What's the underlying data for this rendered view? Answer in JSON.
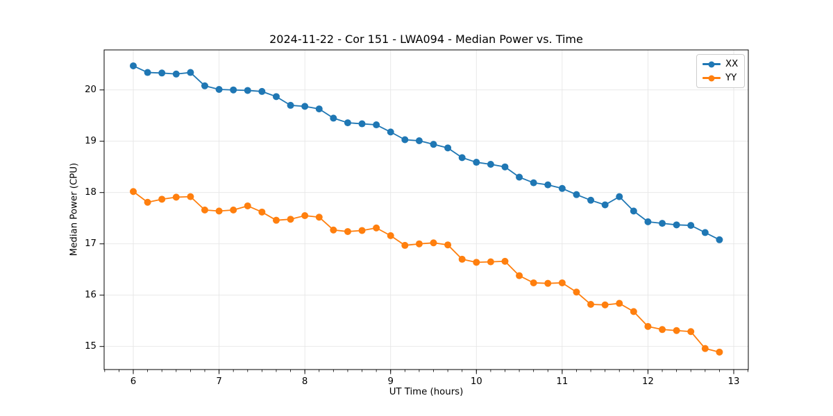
{
  "chart_data": {
    "type": "line",
    "title": "2024-11-22 - Cor 151 - LWA094 - Median Power vs. Time",
    "xlabel": "UT Time (hours)",
    "ylabel": "Median Power (CPU)",
    "xlim": [
      5.66,
      13.17
    ],
    "ylim": [
      14.55,
      20.78
    ],
    "x_ticks": [
      6,
      7,
      8,
      9,
      10,
      11,
      12,
      13
    ],
    "x_tick_labels": [
      "6",
      "7",
      "8",
      "9",
      "10",
      "11",
      "12",
      "13"
    ],
    "x_minor_step": 0.166667,
    "y_ticks": [
      15,
      16,
      17,
      18,
      19,
      20
    ],
    "y_tick_labels": [
      "15",
      "16",
      "17",
      "18",
      "19",
      "20"
    ],
    "grid": true,
    "grid_color": "#e6e6e6",
    "spine_color": "#000000",
    "legend_position": "upper right",
    "x": [
      6.0,
      6.1667,
      6.3333,
      6.5,
      6.6667,
      6.8333,
      7.0,
      7.1667,
      7.3333,
      7.5,
      7.6667,
      7.8333,
      8.0,
      8.1667,
      8.3333,
      8.5,
      8.6667,
      8.8333,
      9.0,
      9.1667,
      9.3333,
      9.5,
      9.6667,
      9.8333,
      10.0,
      10.1667,
      10.3333,
      10.5,
      10.6667,
      10.8333,
      11.0,
      11.1667,
      11.3333,
      11.5,
      11.6667,
      11.8333,
      12.0,
      12.1667,
      12.3333,
      12.5,
      12.6667,
      12.8333
    ],
    "series": [
      {
        "name": "XX",
        "color": "#1f77b4",
        "marker": "circle",
        "values": [
          20.47,
          20.34,
          20.33,
          20.31,
          20.34,
          20.08,
          20.01,
          20.0,
          19.99,
          19.97,
          19.87,
          19.7,
          19.68,
          19.63,
          19.45,
          19.36,
          19.34,
          19.32,
          19.18,
          19.03,
          19.01,
          18.94,
          18.87,
          18.68,
          18.59,
          18.55,
          18.5,
          18.3,
          18.19,
          18.15,
          18.08,
          17.96,
          17.85,
          17.76,
          17.92,
          17.64,
          17.43,
          17.4,
          17.37,
          17.36,
          17.22,
          17.08
        ]
      },
      {
        "name": "YY",
        "color": "#ff7f0e",
        "marker": "circle",
        "values": [
          18.02,
          17.81,
          17.87,
          17.91,
          17.92,
          17.66,
          17.64,
          17.66,
          17.74,
          17.62,
          17.46,
          17.48,
          17.55,
          17.52,
          17.27,
          17.24,
          17.26,
          17.31,
          17.16,
          16.97,
          17.0,
          17.02,
          16.98,
          16.7,
          16.64,
          16.65,
          16.66,
          16.38,
          16.24,
          16.23,
          16.24,
          16.06,
          15.82,
          15.81,
          15.84,
          15.68,
          15.39,
          15.33,
          15.31,
          15.29,
          14.96,
          14.89
        ]
      }
    ]
  }
}
